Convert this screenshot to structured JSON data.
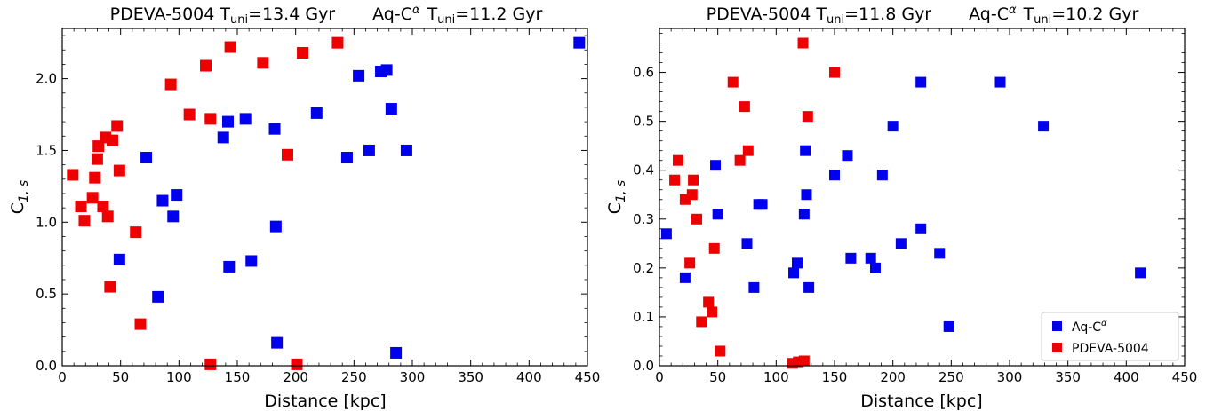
{
  "colors": {
    "aq": "#0000ee",
    "pdeva": "#ee0000"
  },
  "chart_data": [
    {
      "type": "scatter",
      "title": {
        "left": "PDEVA-5004  T",
        "left_sub": "uni",
        "left_eq": "=13.4 Gyr",
        "right": "Aq-C",
        "right_sup": "α",
        "right_t": "T",
        "right_sub": "uni",
        "right_eq": "=11.2 Gyr"
      },
      "xlabel": "Distance [kpc]",
      "ylabel": "C",
      "ylabel_sub": "1, s",
      "xlim": [
        0,
        450
      ],
      "ylim": [
        0,
        2.35
      ],
      "xticks": [
        "0",
        "50",
        "100",
        "150",
        "200",
        "250",
        "300",
        "350",
        "400",
        "450"
      ],
      "yticks": [
        "0.0",
        "0.5",
        "1.0",
        "1.5",
        "2.0"
      ],
      "grid": false,
      "series": [
        {
          "name": "Aq-C",
          "color": "#0000ee",
          "points": [
            [
              49,
              0.74
            ],
            [
              72,
              1.45
            ],
            [
              82,
              0.48
            ],
            [
              86,
              1.15
            ],
            [
              95,
              1.04
            ],
            [
              98,
              1.19
            ],
            [
              138,
              1.59
            ],
            [
              142,
              1.7
            ],
            [
              143,
              0.69
            ],
            [
              157,
              1.72
            ],
            [
              162,
              0.73
            ],
            [
              182,
              1.65
            ],
            [
              183,
              0.97
            ],
            [
              184,
              0.16
            ],
            [
              218,
              1.76
            ],
            [
              244,
              1.45
            ],
            [
              254,
              2.02
            ],
            [
              263,
              1.5
            ],
            [
              273,
              2.05
            ],
            [
              278,
              2.06
            ],
            [
              282,
              1.79
            ],
            [
              286,
              0.09
            ],
            [
              295,
              1.5
            ],
            [
              443,
              2.25
            ]
          ]
        },
        {
          "name": "PDEVA-5004",
          "color": "#ee0000",
          "points": [
            [
              9,
              1.33
            ],
            [
              16,
              1.11
            ],
            [
              19,
              1.01
            ],
            [
              26,
              1.17
            ],
            [
              28,
              1.31
            ],
            [
              30,
              1.44
            ],
            [
              31,
              1.53
            ],
            [
              35,
              1.11
            ],
            [
              37,
              1.59
            ],
            [
              39,
              1.04
            ],
            [
              41,
              0.55
            ],
            [
              43,
              1.57
            ],
            [
              47,
              1.67
            ],
            [
              49,
              1.36
            ],
            [
              63,
              0.93
            ],
            [
              67,
              0.29
            ],
            [
              93,
              1.96
            ],
            [
              109,
              1.75
            ],
            [
              123,
              2.09
            ],
            [
              127,
              1.72
            ],
            [
              127,
              0.01
            ],
            [
              144,
              2.22
            ],
            [
              172,
              2.11
            ],
            [
              193,
              1.47
            ],
            [
              201,
              0.01
            ],
            [
              206,
              2.18
            ],
            [
              236,
              2.25
            ]
          ]
        }
      ]
    },
    {
      "type": "scatter",
      "title": {
        "left": "PDEVA-5004  T",
        "left_sub": "uni",
        "left_eq": "=11.8 Gyr",
        "right": "Aq-C",
        "right_sup": "α",
        "right_t": "T",
        "right_sub": "uni",
        "right_eq": "=10.2 Gyr"
      },
      "xlabel": "Distance [kpc]",
      "ylabel": "C",
      "ylabel_sub": "1, s",
      "xlim": [
        0,
        450
      ],
      "ylim": [
        0,
        0.69
      ],
      "xticks": [
        "0",
        "50",
        "100",
        "150",
        "200",
        "250",
        "300",
        "350",
        "400",
        "450"
      ],
      "yticks": [
        "0.0",
        "0.1",
        "0.2",
        "0.3",
        "0.4",
        "0.5",
        "0.6"
      ],
      "grid": false,
      "legend": {
        "placement": "lower-right",
        "entries": [
          {
            "label": "Aq-C",
            "sup": "α",
            "color": "#0000ee"
          },
          {
            "label": "PDEVA-5004",
            "sup": "",
            "color": "#ee0000"
          }
        ]
      },
      "series": [
        {
          "name": "Aq-C",
          "color": "#0000ee",
          "points": [
            [
              6,
              0.27
            ],
            [
              22,
              0.18
            ],
            [
              48,
              0.41
            ],
            [
              50,
              0.31
            ],
            [
              75,
              0.25
            ],
            [
              81,
              0.16
            ],
            [
              85,
              0.33
            ],
            [
              88,
              0.33
            ],
            [
              115,
              0.19
            ],
            [
              118,
              0.21
            ],
            [
              124,
              0.31
            ],
            [
              125,
              0.44
            ],
            [
              126,
              0.35
            ],
            [
              128,
              0.16
            ],
            [
              150,
              0.39
            ],
            [
              161,
              0.43
            ],
            [
              164,
              0.22
            ],
            [
              181,
              0.22
            ],
            [
              185,
              0.2
            ],
            [
              191,
              0.39
            ],
            [
              200,
              0.49
            ],
            [
              207,
              0.25
            ],
            [
              224,
              0.58
            ],
            [
              224,
              0.28
            ],
            [
              240,
              0.23
            ],
            [
              248,
              0.08
            ],
            [
              292,
              0.58
            ],
            [
              329,
              0.49
            ],
            [
              412,
              0.19
            ]
          ]
        },
        {
          "name": "PDEVA-5004",
          "color": "#ee0000",
          "points": [
            [
              13,
              0.38
            ],
            [
              16,
              0.42
            ],
            [
              22,
              0.34
            ],
            [
              26,
              0.21
            ],
            [
              28,
              0.35
            ],
            [
              29,
              0.38
            ],
            [
              32,
              0.3
            ],
            [
              36,
              0.09
            ],
            [
              42,
              0.13
            ],
            [
              45,
              0.11
            ],
            [
              47,
              0.24
            ],
            [
              52,
              0.03
            ],
            [
              63,
              0.58
            ],
            [
              69,
              0.42
            ],
            [
              73,
              0.53
            ],
            [
              76,
              0.44
            ],
            [
              114,
              0.005
            ],
            [
              119,
              0.008
            ],
            [
              123,
              0.66
            ],
            [
              124,
              0.01
            ],
            [
              127,
              0.51
            ],
            [
              150,
              0.6
            ]
          ]
        }
      ]
    }
  ]
}
